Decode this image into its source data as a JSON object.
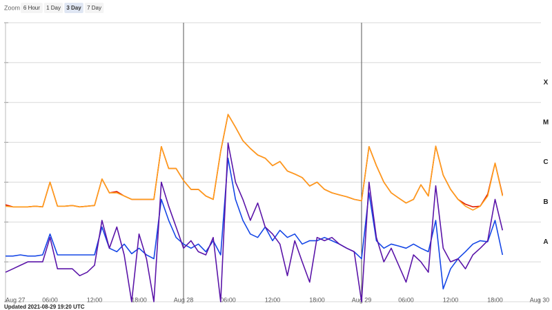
{
  "toolbar": {
    "label": "Zoom",
    "options": [
      "6 Hour",
      "1 Day",
      "3 Day",
      "7 Day"
    ],
    "selected": 2
  },
  "footer": "Updated 2021-08-29 19:20 UTC",
  "chart_data": {
    "type": "line",
    "log_y": true,
    "x": [
      0,
      1,
      2,
      3,
      4,
      5,
      6,
      7,
      8,
      9,
      10,
      11,
      12,
      13,
      14,
      15,
      16,
      17,
      18,
      19,
      20,
      21,
      22,
      23,
      24,
      25,
      26,
      27,
      28,
      29,
      30,
      31,
      32,
      33,
      34,
      35,
      36,
      37,
      38,
      39,
      40,
      41,
      42,
      43,
      44,
      45,
      46,
      47,
      48,
      49,
      50,
      51,
      52,
      53,
      54,
      55,
      56,
      57,
      58,
      59,
      60,
      61,
      62,
      63,
      64,
      65,
      66,
      67
    ],
    "xlim": [
      0,
      72
    ],
    "xticks": [
      {
        "value": 0,
        "label": "Aug 27"
      },
      {
        "value": 6,
        "label": "06:00"
      },
      {
        "value": 12,
        "label": "12:00"
      },
      {
        "value": 18,
        "label": "18:00"
      },
      {
        "value": 24,
        "label": "Aug 28"
      },
      {
        "value": 30,
        "label": "06:00"
      },
      {
        "value": 36,
        "label": "12:00"
      },
      {
        "value": 42,
        "label": "18:00"
      },
      {
        "value": 48,
        "label": "Aug 29"
      },
      {
        "value": 54,
        "label": "06:00"
      },
      {
        "value": 60,
        "label": "12:00"
      },
      {
        "value": 66,
        "label": "18:00"
      },
      {
        "value": 72,
        "label": "Aug 30"
      }
    ],
    "ylim": [
      1e-09,
      0.01
    ],
    "yticks": [
      1e-09,
      1e-08,
      1e-07,
      1e-06,
      1e-05,
      0.0001,
      0.001,
      0.01
    ],
    "classes": [
      {
        "value": 1e-08,
        "label": "A"
      },
      {
        "value": 1e-07,
        "label": "B"
      },
      {
        "value": 1e-06,
        "label": "C"
      },
      {
        "value": 1e-05,
        "label": "M"
      },
      {
        "value": 0.0001,
        "label": "X"
      }
    ],
    "series": [
      {
        "color": "#e01b00",
        "values": [
          2.7e-07,
          2.4e-07,
          2.4e-07,
          2.4e-07,
          2.5e-07,
          2.4e-07,
          1e-06,
          2.5e-07,
          2.5e-07,
          2.6e-07,
          2.4e-07,
          2.5e-07,
          2.6e-07,
          1.2e-06,
          5.4e-07,
          5.8e-07,
          4.5e-07,
          3.7e-07,
          3.7e-07,
          3.7e-07,
          3.7e-07,
          7.8e-06,
          2.2e-06,
          2.2e-06,
          1.1e-06,
          6.6e-07,
          6.6e-07,
          4.5e-07,
          3.7e-07,
          5.9e-06,
          5e-05,
          2.4e-05,
          1.1e-05,
          7e-06,
          4.8e-06,
          4e-06,
          2.6e-06,
          3.3e-06,
          1.9e-06,
          1.6e-06,
          1.3e-06,
          8e-07,
          1e-06,
          6.6e-07,
          5.4e-07,
          4.8e-07,
          4.3e-07,
          3.7e-07,
          3.4e-07,
          7.8e-06,
          2.6e-06,
          1e-06,
          5.4e-07,
          4e-07,
          3e-07,
          3.7e-07,
          8.6e-07,
          4.5e-07,
          8e-06,
          1.5e-06,
          6.6e-07,
          3.7e-07,
          2.8e-07,
          2.4e-07,
          2.5e-07,
          5e-07,
          3e-06,
          4.8e-07
        ]
      },
      {
        "color": "#ff9e1b",
        "values": [
          2.5e-07,
          2.4e-07,
          2.4e-07,
          2.4e-07,
          2.5e-07,
          2.4e-07,
          1e-06,
          2.5e-07,
          2.5e-07,
          2.6e-07,
          2.4e-07,
          2.5e-07,
          2.6e-07,
          1.2e-06,
          5.4e-07,
          5.4e-07,
          4.5e-07,
          3.7e-07,
          3.7e-07,
          3.7e-07,
          3.7e-07,
          7.8e-06,
          2.2e-06,
          2.2e-06,
          1.1e-06,
          6.6e-07,
          6.6e-07,
          4.5e-07,
          3.7e-07,
          5.9e-06,
          5e-05,
          2.4e-05,
          1.1e-05,
          7e-06,
          4.8e-06,
          4e-06,
          2.6e-06,
          3.3e-06,
          1.9e-06,
          1.6e-06,
          1.3e-06,
          8e-07,
          1e-06,
          6.6e-07,
          5.4e-07,
          4.8e-07,
          4.3e-07,
          3.7e-07,
          3.4e-07,
          7.8e-06,
          2.6e-06,
          1e-06,
          5.4e-07,
          4e-07,
          3e-07,
          3.7e-07,
          8.6e-07,
          4.5e-07,
          8e-06,
          1.5e-06,
          6.6e-07,
          3.7e-07,
          2.5e-07,
          2e-07,
          2.5e-07,
          4.5e-07,
          3e-06,
          4.5e-07
        ]
      },
      {
        "color": "#1446e6",
        "values": [
          1.4e-08,
          1.4e-08,
          1.5e-08,
          1.4e-08,
          1.4e-08,
          1.5e-08,
          5e-08,
          1.5e-08,
          1.5e-08,
          1.5e-08,
          1.5e-08,
          1.5e-08,
          1.5e-08,
          7.5e-08,
          2.2e-08,
          1.8e-08,
          2.8e-08,
          1.6e-08,
          2.2e-08,
          1.5e-08,
          1.2e-08,
          3.7e-07,
          1.1e-07,
          4.1e-08,
          2.8e-08,
          2.2e-08,
          2.8e-08,
          1.8e-08,
          3.4e-08,
          1.5e-08,
          4e-06,
          3.7e-07,
          1.1e-07,
          5e-08,
          4.1e-08,
          7.5e-08,
          3.4e-08,
          6.2e-08,
          4.1e-08,
          5e-08,
          2.8e-08,
          3.4e-08,
          3.4e-08,
          4.1e-08,
          3.4e-08,
          2.8e-08,
          2.2e-08,
          1.8e-08,
          1.2e-08,
          5.4e-07,
          3.4e-08,
          2.2e-08,
          2.8e-08,
          2.5e-08,
          2.2e-08,
          2.8e-08,
          2.2e-08,
          1.8e-08,
          1.1e-07,
          2.1e-09,
          6.7e-09,
          1.2e-08,
          1.8e-08,
          2.8e-08,
          3.4e-08,
          3.2e-08,
          1.1e-07,
          1.5e-08
        ]
      },
      {
        "color": "#5a14a8",
        "values": [
          5.5e-09,
          6.7e-09,
          8.2e-09,
          1e-08,
          1e-08,
          1e-08,
          4.1e-08,
          6.7e-09,
          6.7e-09,
          6.7e-09,
          4.5e-09,
          5.5e-09,
          8.2e-09,
          1.1e-07,
          2.2e-08,
          7.5e-08,
          1.5e-08,
          1e-09,
          5e-08,
          1.2e-08,
          1e-09,
          1e-06,
          2.5e-07,
          7.5e-08,
          2.2e-08,
          3.4e-08,
          1.8e-08,
          1.5e-08,
          4.1e-08,
          1e-09,
          9.6e-06,
          1e-06,
          3.7e-07,
          1.1e-07,
          3e-07,
          7.5e-08,
          5e-08,
          2.8e-08,
          4.5e-09,
          3.4e-08,
          1e-08,
          3.1e-09,
          4.1e-08,
          3.4e-08,
          4.1e-08,
          2.8e-08,
          2.2e-08,
          1.8e-08,
          1e-09,
          1e-06,
          4.1e-08,
          1e-08,
          2.2e-08,
          8.2e-09,
          3.1e-09,
          1.5e-08,
          1e-08,
          5.5e-09,
          8.1e-07,
          2.2e-08,
          1e-08,
          1.2e-08,
          6.7e-09,
          1.5e-08,
          2.2e-08,
          3.4e-08,
          3.7e-07,
          6.2e-08
        ]
      }
    ]
  }
}
